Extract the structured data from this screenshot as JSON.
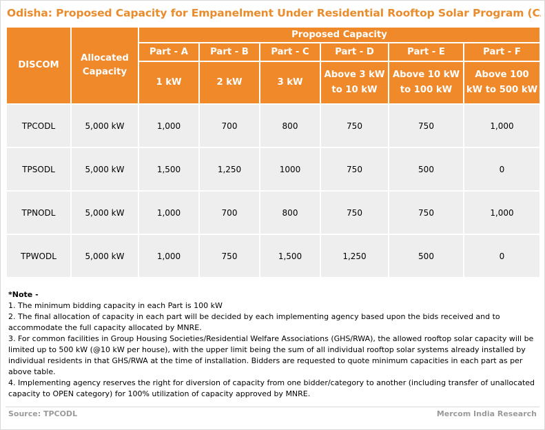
{
  "title": "Odisha: Proposed Capacity for Empanelment Under Residential Rooftop Solar Program (CAPEX",
  "table": {
    "discom_header": "DISCOM",
    "allocated_header": "Allocated Capacity",
    "proposed_header": "Proposed Capacity",
    "parts": [
      "Part - A",
      "Part - B",
      "Part - C",
      "Part - D",
      "Part - E",
      "Part - F"
    ],
    "part_ranges": [
      "1 kW",
      "2 kW",
      "3 kW",
      "Above 3 kW to 10 kW",
      "Above 10 kW to 100 kW",
      "Above 100 kW to 500 kW"
    ],
    "rows": [
      {
        "discom": "TPCODL",
        "allocated": "5,000 kW",
        "values": [
          "1,000",
          "700",
          "800",
          "750",
          "750",
          "1,000"
        ]
      },
      {
        "discom": "TPSODL",
        "allocated": "5,000 kW",
        "values": [
          "1,500",
          "1,250",
          "1000",
          "750",
          "500",
          "0"
        ]
      },
      {
        "discom": "TPNODL",
        "allocated": "5,000 kW",
        "values": [
          "1,000",
          "700",
          "800",
          "750",
          "750",
          "1,000"
        ]
      },
      {
        "discom": "TPWODL",
        "allocated": "5,000 kW",
        "values": [
          "1,000",
          "750",
          "1,500",
          "1,250",
          "500",
          "0"
        ]
      }
    ]
  },
  "notes": {
    "heading": "*Note -",
    "items": [
      " 1. The minimum bidding capacity in each Part is 100 kW",
      " 2. The final allocation of capacity in each part will be decided by each implementing agency based upon the bids received and to accommodate the full capacity allocated by MNRE.",
      "3. For common facilities in Group Housing Societies/Residential Welfare Associations (GHS/RWA), the allowed rooftop solar capacity will be limited up to 500 kW (@10 kW per house), with the upper limit being the sum of all individual rooftop solar systems already installed by individual residents in that GHS/RWA at the time of installation. Bidders are requested to quote minimum capacities in each part as per above table.",
      "4. Implementing agency reserves the right for diversion of capacity from one bidder/category to another (including transfer of unallocated capacity to OPEN category) for 100% utilization of capacity approved by MNRE."
    ]
  },
  "footer": {
    "source": "Source: TPCODL",
    "credit": "Mercom India Research"
  },
  "colors": {
    "header_orange": "#f0892a",
    "title_orange": "#ea8b2c",
    "cell_grey": "#eeeeee",
    "footer_grey": "#9a9a9a"
  }
}
